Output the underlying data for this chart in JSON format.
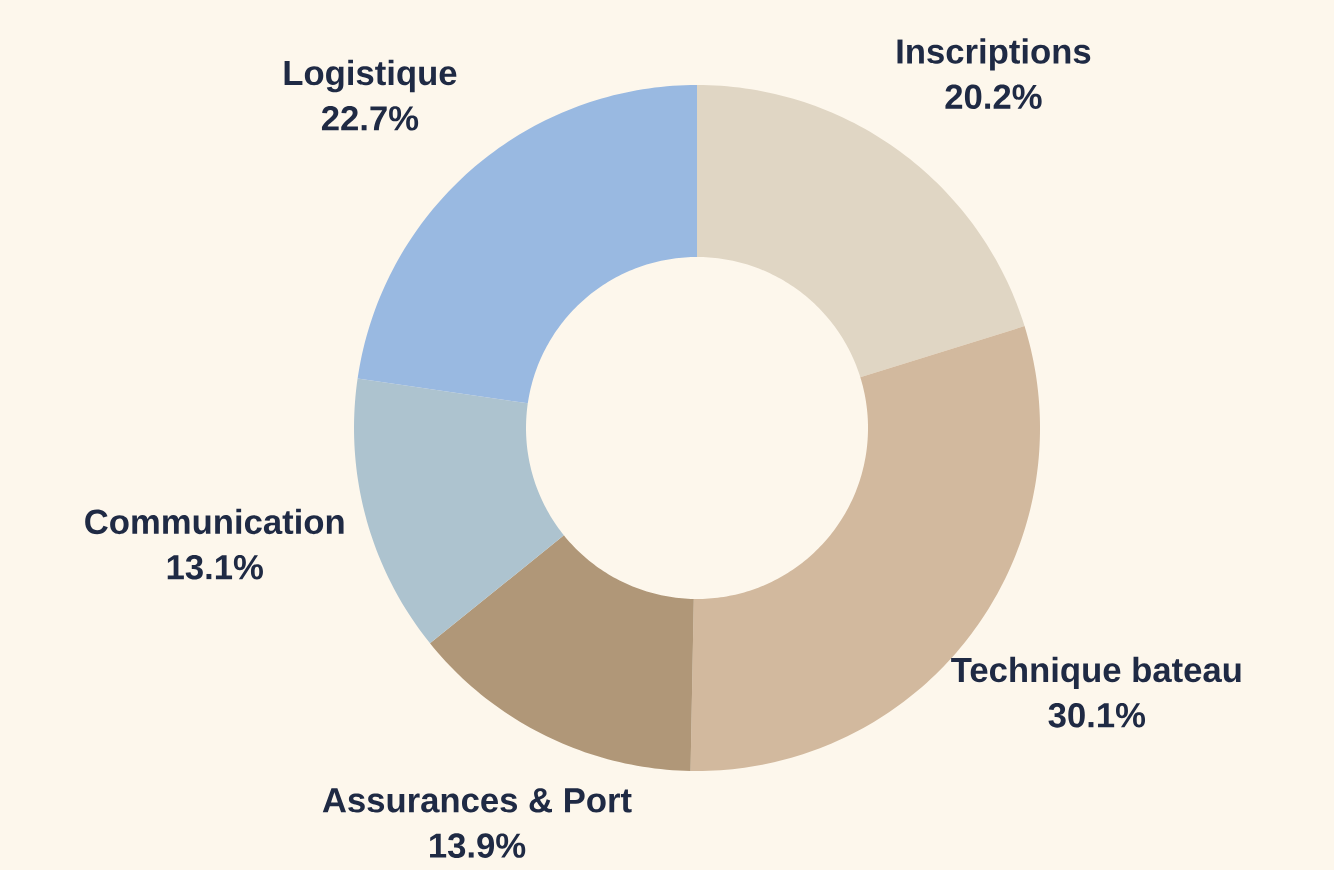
{
  "chart_data": {
    "type": "donut",
    "categories": [
      "Inscriptions",
      "Technique bateau",
      "Assurances & Port",
      "Communication",
      "Logistique"
    ],
    "values": [
      20.2,
      30.1,
      13.9,
      13.1,
      22.7
    ],
    "value_labels": [
      "20.2%",
      "30.1%",
      "13.9%",
      "13.1%",
      "22.7%"
    ],
    "colors": [
      "#e0d6c4",
      "#d2b99e",
      "#b09778",
      "#adc3cf",
      "#99b9e1"
    ]
  }
}
